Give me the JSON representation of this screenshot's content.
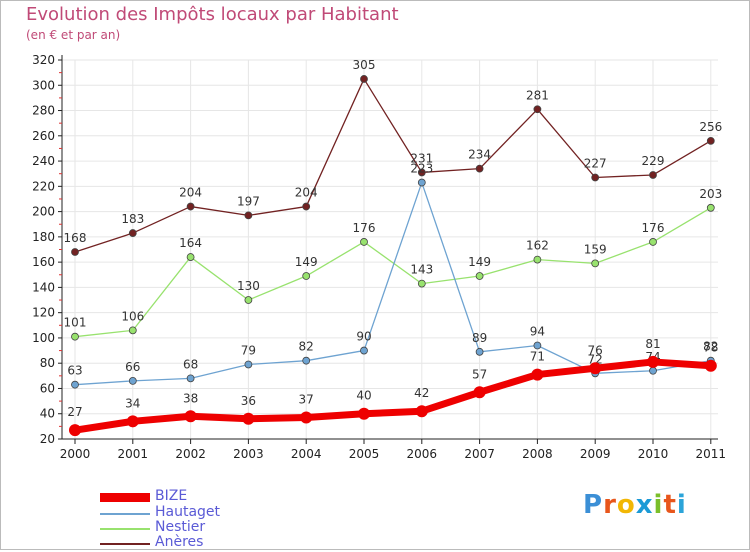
{
  "title": "Evolution des Impôts locaux par Habitant",
  "subtitle": "(en € et par an)",
  "logo_letters": [
    "P",
    "r",
    "o",
    "x",
    "i",
    "t",
    "i"
  ],
  "logo_colors": [
    "#3b8fd6",
    "#e8561c",
    "#f2b705",
    "#1b9ad6",
    "#7bbf2a",
    "#e8561c",
    "#2ba4d9"
  ],
  "chart_data": {
    "type": "line",
    "categories": [
      "2000",
      "2001",
      "2002",
      "2003",
      "2004",
      "2005",
      "2006",
      "2007",
      "2008",
      "2009",
      "2010",
      "2011"
    ],
    "ylim": [
      20,
      320
    ],
    "yticks": [
      20,
      40,
      60,
      80,
      100,
      120,
      140,
      160,
      180,
      200,
      220,
      240,
      260,
      280,
      300,
      320
    ],
    "series": [
      {
        "name": "Anères",
        "color": "#722222",
        "values": [
          168,
          183,
          204,
          197,
          204,
          305,
          231,
          234,
          281,
          227,
          229,
          256
        ],
        "labels": [
          "168",
          "183",
          "204",
          "197",
          "204",
          "305",
          "231",
          "234",
          "281",
          "227",
          "229",
          "256"
        ]
      },
      {
        "name": "Nestier",
        "color": "#98e26e",
        "values": [
          101,
          106,
          164,
          130,
          149,
          176,
          143,
          149,
          162,
          159,
          176,
          203
        ],
        "labels": [
          "101",
          "106",
          "164",
          "130",
          "149",
          "176",
          "143",
          "149",
          "162",
          "159",
          "176",
          "203"
        ]
      },
      {
        "name": "Hautaget",
        "color": "#6ea3d1",
        "values": [
          63,
          66,
          68,
          79,
          82,
          90,
          223,
          89,
          94,
          72,
          74,
          82
        ],
        "labels": [
          "63",
          "66",
          "68",
          "79",
          "82",
          "90",
          "223",
          "89",
          "94",
          "72",
          "74",
          "82"
        ]
      },
      {
        "name": "BIZE",
        "color": "#ee0000",
        "values": [
          27,
          34,
          38,
          36,
          37,
          40,
          42,
          57,
          71,
          76,
          81,
          78
        ],
        "labels": [
          "27",
          "34",
          "38",
          "36",
          "37",
          "40",
          "42",
          "57",
          "71",
          "76",
          "81",
          "78"
        ]
      }
    ],
    "legend": [
      "BIZE",
      "Hautaget",
      "Nestier",
      "Anères"
    ]
  }
}
